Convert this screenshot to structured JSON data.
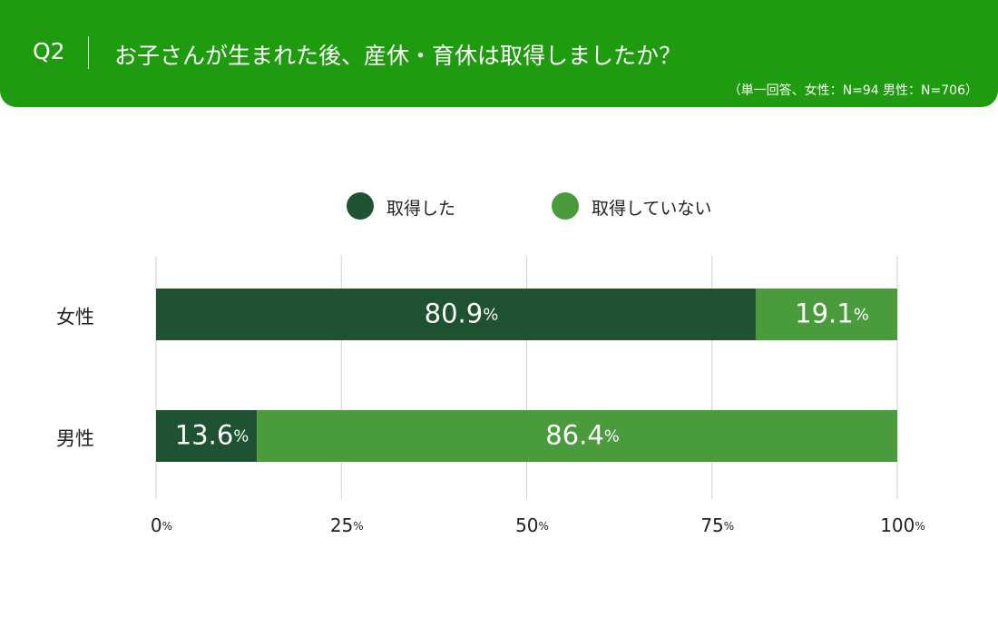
{
  "header": {
    "question_label": "Q2",
    "title": "お子さんが生まれた後、産休・育休は取得しましたか？",
    "note": "（単一回答、女性：N=94 男性：N=706）",
    "bg_color": "#1f9b0f"
  },
  "chart_data": {
    "type": "bar",
    "orientation": "horizontal",
    "stacked": true,
    "categories": [
      "女性",
      "男性"
    ],
    "series": [
      {
        "name": "取得した",
        "color": "#1e5230",
        "values": [
          80.9,
          13.6
        ]
      },
      {
        "name": "取得していない",
        "color": "#4a9b3c",
        "values": [
          19.1,
          86.4
        ]
      }
    ],
    "value_unit": "%",
    "xlim": [
      0,
      100
    ],
    "xticks": [
      0,
      25,
      50,
      75,
      100
    ],
    "xtick_unit": "%",
    "grid": true,
    "legend_position": "top"
  }
}
